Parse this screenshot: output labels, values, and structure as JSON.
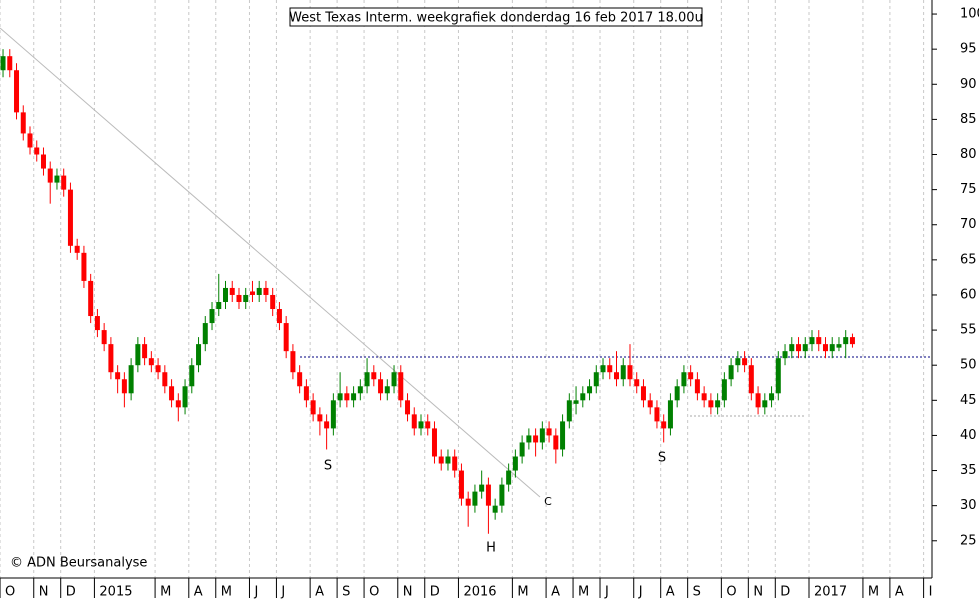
{
  "chart_data": {
    "type": "candlestick",
    "title": "West Texas Interm. weekgrafiek donderdag 16 feb 2017 18.00u",
    "credit": "© ADN Beursanalyse",
    "annotations": [
      "S",
      "H",
      "S",
      "C"
    ],
    "up_color": "#008000",
    "down_color": "#ff0000",
    "ylim": [
      19.7,
      102
    ],
    "yticks": [
      25,
      30,
      35,
      40,
      45,
      50,
      55,
      60,
      65,
      70,
      75,
      80,
      85,
      90,
      95,
      100
    ],
    "xlim": [
      -0.45,
      137.8
    ],
    "xticks": [
      {
        "value": 0,
        "label": "O"
      },
      {
        "value": 5,
        "label": "N"
      },
      {
        "value": 9,
        "label": "D"
      },
      {
        "value": 14,
        "label": "2015"
      },
      {
        "value": 23,
        "label": "M"
      },
      {
        "value": 28,
        "label": "A"
      },
      {
        "value": 32,
        "label": "M"
      },
      {
        "value": 37,
        "label": "J"
      },
      {
        "value": 41,
        "label": "J"
      },
      {
        "value": 46,
        "label": "A"
      },
      {
        "value": 50,
        "label": "S"
      },
      {
        "value": 54,
        "label": "O"
      },
      {
        "value": 59,
        "label": "N"
      },
      {
        "value": 63,
        "label": "D"
      },
      {
        "value": 68,
        "label": "2016"
      },
      {
        "value": 76,
        "label": "M"
      },
      {
        "value": 81,
        "label": "A"
      },
      {
        "value": 85,
        "label": "M"
      },
      {
        "value": 89,
        "label": "J"
      },
      {
        "value": 94,
        "label": "J"
      },
      {
        "value": 98,
        "label": "A"
      },
      {
        "value": 102,
        "label": "S"
      },
      {
        "value": 107,
        "label": "O"
      },
      {
        "value": 111,
        "label": "N"
      },
      {
        "value": 115,
        "label": "D"
      },
      {
        "value": 120,
        "label": "2017"
      },
      {
        "value": 128,
        "label": "M"
      },
      {
        "value": 132,
        "label": "A"
      },
      {
        "value": 137,
        "label": "I"
      }
    ],
    "grid": true,
    "candles": [
      [
        92,
        95,
        91,
        94
      ],
      [
        94,
        95,
        91,
        92
      ],
      [
        92,
        93,
        85,
        86
      ],
      [
        86,
        87,
        82,
        83
      ],
      [
        83,
        84,
        80,
        81
      ],
      [
        81,
        82,
        79,
        80
      ],
      [
        80,
        81,
        77,
        78
      ],
      [
        78,
        79,
        73,
        76
      ],
      [
        76,
        78,
        75,
        77
      ],
      [
        77,
        78,
        74,
        75
      ],
      [
        75,
        76,
        66,
        67
      ],
      [
        67,
        68,
        65,
        66
      ],
      [
        66,
        67,
        61,
        62
      ],
      [
        62,
        63,
        56,
        57
      ],
      [
        57,
        58,
        54,
        55
      ],
      [
        55,
        56,
        52,
        53
      ],
      [
        53,
        54,
        48,
        49
      ],
      [
        49,
        50,
        46,
        48
      ],
      [
        48,
        49,
        44,
        46
      ],
      [
        46,
        51,
        45,
        50
      ],
      [
        50,
        54,
        49,
        53
      ],
      [
        53,
        54,
        50,
        51
      ],
      [
        51,
        52,
        49,
        50
      ],
      [
        50,
        51,
        48,
        49
      ],
      [
        49,
        50,
        46,
        47
      ],
      [
        47,
        48,
        44,
        45
      ],
      [
        45,
        46,
        42,
        44
      ],
      [
        44,
        48,
        43,
        47
      ],
      [
        47,
        51,
        46,
        50
      ],
      [
        50,
        54,
        49,
        53
      ],
      [
        53,
        57,
        52,
        56
      ],
      [
        56,
        59,
        55,
        58
      ],
      [
        58,
        63,
        57,
        59
      ],
      [
        59,
        62,
        58,
        61
      ],
      [
        61,
        62,
        59,
        60
      ],
      [
        60,
        61,
        58,
        59
      ],
      [
        59,
        61,
        58,
        60
      ],
      [
        60.5,
        62,
        59,
        60
      ],
      [
        60,
        62,
        59,
        61
      ],
      [
        61,
        62,
        59,
        60
      ],
      [
        60,
        61,
        57,
        58
      ],
      [
        58,
        59,
        55,
        56
      ],
      [
        56,
        57,
        51,
        52
      ],
      [
        52,
        53,
        48,
        49
      ],
      [
        49,
        50,
        46,
        47
      ],
      [
        47,
        48,
        44,
        45
      ],
      [
        45,
        46,
        42,
        43
      ],
      [
        43,
        44,
        40,
        42
      ],
      [
        42,
        43,
        38,
        41
      ],
      [
        41,
        46,
        40,
        45
      ],
      [
        45,
        49,
        44,
        46
      ],
      [
        46,
        47,
        44,
        45
      ],
      [
        45,
        47,
        44,
        46
      ],
      [
        46,
        48,
        45,
        47
      ],
      [
        47,
        51,
        46,
        49
      ],
      [
        49,
        50,
        47,
        48
      ],
      [
        48,
        49,
        45,
        46
      ],
      [
        46,
        48,
        45,
        47
      ],
      [
        47,
        50,
        46,
        49
      ],
      [
        49,
        50,
        44,
        45
      ],
      [
        45,
        46,
        42,
        43
      ],
      [
        43,
        44,
        40,
        41
      ],
      [
        41,
        43,
        40,
        42
      ],
      [
        42,
        43,
        40,
        41
      ],
      [
        41,
        42,
        36,
        37
      ],
      [
        37,
        38,
        35,
        36
      ],
      [
        36,
        38,
        35,
        37
      ],
      [
        37,
        38,
        34,
        35
      ],
      [
        35,
        36,
        30,
        31
      ],
      [
        31,
        32,
        27,
        30
      ],
      [
        30,
        33,
        29,
        32
      ],
      [
        32,
        35,
        31,
        33
      ],
      [
        33,
        34,
        26,
        30
      ],
      [
        29,
        31,
        28,
        30
      ],
      [
        30,
        34,
        29,
        33
      ],
      [
        33,
        36,
        32,
        35
      ],
      [
        35,
        38,
        34,
        37
      ],
      [
        37,
        40,
        36,
        39
      ],
      [
        39,
        41,
        38,
        40
      ],
      [
        40,
        41,
        37,
        39
      ],
      [
        39,
        42,
        38,
        41
      ],
      [
        41,
        42,
        39,
        40
      ],
      [
        40,
        41,
        36,
        38
      ],
      [
        38,
        43,
        37,
        42
      ],
      [
        42,
        46,
        41,
        45
      ],
      [
        44.5,
        47,
        43,
        45
      ],
      [
        45,
        47,
        44,
        46
      ],
      [
        46,
        48,
        45,
        47
      ],
      [
        47,
        50,
        46,
        49
      ],
      [
        49,
        51,
        48,
        50
      ],
      [
        50,
        51,
        48,
        49
      ],
      [
        49,
        52,
        47,
        48
      ],
      [
        48,
        51,
        47,
        50
      ],
      [
        50,
        53,
        47,
        48
      ],
      [
        48,
        49,
        46,
        47
      ],
      [
        47,
        48,
        44,
        45
      ],
      [
        45,
        46,
        43,
        44
      ],
      [
        44,
        45,
        41,
        42
      ],
      [
        42,
        43,
        39,
        41
      ],
      [
        41,
        46,
        40,
        45
      ],
      [
        45,
        48,
        44,
        47
      ],
      [
        47,
        50,
        46,
        49
      ],
      [
        49,
        50,
        47,
        48
      ],
      [
        48,
        49,
        45,
        46
      ],
      [
        46,
        47,
        44,
        45
      ],
      [
        45,
        46,
        43,
        44
      ],
      [
        44,
        46,
        43,
        45
      ],
      [
        45,
        49,
        44,
        48
      ],
      [
        48,
        51,
        47,
        50
      ],
      [
        50,
        52,
        49,
        51
      ],
      [
        51,
        52,
        49,
        50
      ],
      [
        50,
        51,
        45,
        46
      ],
      [
        46,
        47,
        43,
        44
      ],
      [
        44,
        46,
        43,
        45
      ],
      [
        45,
        47,
        44,
        46
      ],
      [
        46,
        52,
        45,
        51
      ],
      [
        51,
        53,
        50,
        52
      ],
      [
        52,
        54,
        51,
        53
      ],
      [
        53,
        54,
        51,
        52
      ],
      [
        52,
        54,
        51,
        53
      ],
      [
        53,
        55,
        52,
        54
      ],
      [
        54,
        55,
        52,
        53
      ],
      [
        53,
        54,
        51,
        52
      ],
      [
        52,
        54,
        51,
        53
      ],
      [
        52.5,
        54,
        52,
        53
      ],
      [
        53,
        55,
        51,
        54
      ],
      [
        54,
        54.5,
        52.5,
        53
      ]
    ]
  }
}
